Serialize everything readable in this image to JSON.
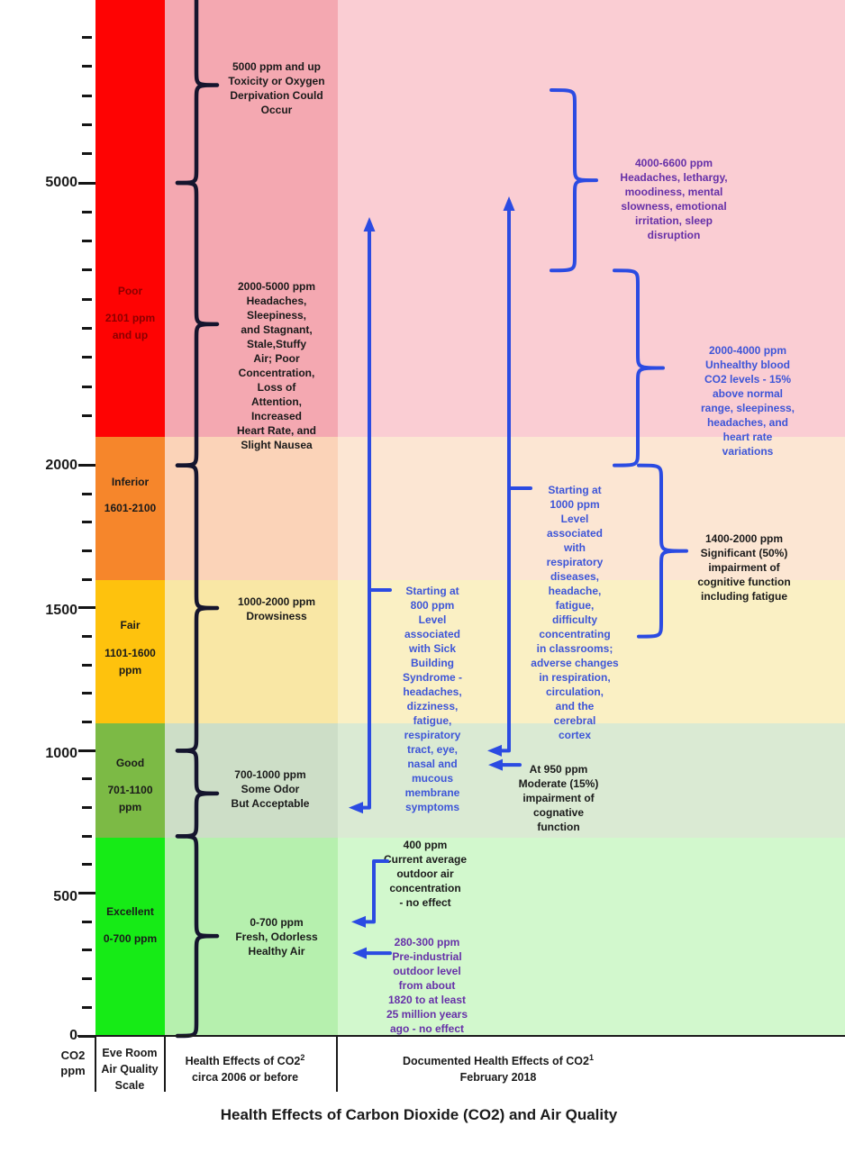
{
  "title": "Health Effects of Carbon Dioxide (CO2) and Air Quality",
  "axis": {
    "unit_label": "CO2\nppm"
  },
  "columns": {
    "scale": {
      "header": "Eve Room\nAir Quality\nScale"
    },
    "effects_2006": {
      "header_main": "Health Effects of CO2",
      "header_sup": "2",
      "header_sub": "circa 2006 or before"
    },
    "effects_2018": {
      "header_main": "Documented Health Effects of CO2",
      "header_sup": "1",
      "header_sub": "February 2018"
    }
  },
  "chart_data": {
    "type": "diagram",
    "title": "Health Effects of Carbon Dioxide (CO2) and Air Quality",
    "y_axis": {
      "label": "CO2 ppm",
      "tick_labels": [
        "0",
        "500",
        "1000",
        "1500",
        "2000",
        "5000"
      ],
      "minor_tick_step_ppm": 100,
      "scale_note": "nonlinear (compressed) above 2100 ppm",
      "range_ppm": [
        0,
        8100
      ]
    },
    "quality_bands": [
      {
        "name": "Poor",
        "range_label": "2101 ppm\nand up",
        "ppm_min": 2100,
        "ppm_max": 8100,
        "color": "#fe0303",
        "label_color": "#8b0000"
      },
      {
        "name": "Inferior",
        "range_label": "1601-2100",
        "ppm_min": 1600,
        "ppm_max": 2100,
        "color": "#f6862b",
        "label_color": "#1a1a1a"
      },
      {
        "name": "Fair",
        "range_label": "1101-1600\nppm",
        "ppm_min": 1100,
        "ppm_max": 1600,
        "color": "#fec20d",
        "label_color": "#1a1a1a"
      },
      {
        "name": "Good",
        "range_label": "701-1100\nppm",
        "ppm_min": 700,
        "ppm_max": 1100,
        "color": "#7cba45",
        "label_color": "#1a1a1a"
      },
      {
        "name": "Excellent",
        "range_label": "0-700 ppm",
        "ppm_min": 0,
        "ppm_max": 700,
        "color": "#16eb16",
        "label_color": "#1a1a1a"
      }
    ],
    "effects_2006": [
      {
        "ppm_min": 5000,
        "ppm_max": 8100,
        "text": "5000 ppm and up\nToxicity or Oxygen\nDerpivation Could\nOccur"
      },
      {
        "ppm_min": 2000,
        "ppm_max": 5000,
        "text": "2000-5000 ppm\nHeadaches,\nSleepiness,\nand Stagnant,\nStale,Stuffy\nAir; Poor\nConcentration,\nLoss of\nAttention,\nIncreased\nHeart Rate, and\nSlight Nausea"
      },
      {
        "ppm_min": 1000,
        "ppm_max": 2000,
        "text": "1000-2000 ppm\nDrowsiness"
      },
      {
        "ppm_min": 700,
        "ppm_max": 1000,
        "text": "700-1000 ppm\nSome Odor\nBut Acceptable"
      },
      {
        "ppm_min": 0,
        "ppm_max": 700,
        "text": "0-700 ppm\nFresh, Odorless\nHealthy Air"
      }
    ],
    "effects_2018_braces": [
      {
        "ppm_min": 4000,
        "ppm_max": 6600,
        "text_color": "#6630a8",
        "text": "4000-6600 ppm\nHeadaches, lethargy,\nmoodiness, mental\nslowness, emotional\nirritation, sleep\ndisruption"
      },
      {
        "ppm_min": 2000,
        "ppm_max": 4000,
        "text_color": "#3d55d8",
        "text": "2000-4000 ppm\nUnhealthy blood\nCO2 levels - 15%\nabove normal\nrange, sleepiness,\nheadaches, and\nheart rate\nvariations"
      },
      {
        "ppm_min": 1400,
        "ppm_max": 2000,
        "text_color": "#1a1a1a",
        "text": "1400-2000 ppm\nSignificant (50%)\nimpairment of\ncognitive function\nincluding fatigue"
      }
    ],
    "effects_2018_arrows": [
      {
        "ppm": 1000,
        "style": "up-range-arrow",
        "text_color": "#3d55d8",
        "text": "Starting at\n1000 ppm\nLevel\nassociated\nwith\nrespiratory\ndiseases,\nheadache,\nfatigue,\ndifficulty\nconcentrating\nin classrooms;\nadverse changes\nin respiration,\ncirculation,\nand the\ncerebral\ncortex"
      },
      {
        "ppm": 800,
        "style": "up-range-arrow",
        "text_color": "#3d55d8",
        "text": "Starting at\n800 ppm\nLevel\nassociated\nwith Sick\nBuilding\nSyndrome -\nheadaches,\ndizziness,\nfatigue,\nrespiratory\ntract, eye,\nnasal and\nmucous\nmembrane\nsymptoms"
      },
      {
        "ppm": 950,
        "style": "level-pointer",
        "text_color": "#1a1a1a",
        "text": "At 950 ppm\nModerate (15%)\nimpairment of\ncognative\nfunction"
      },
      {
        "ppm": 400,
        "style": "level-pointer",
        "text_color": "#1a1a1a",
        "text": "400 ppm\nCurrent average\noutdoor air\nconcentration\n- no effect"
      },
      {
        "ppm": 290,
        "style": "level-pointer",
        "text_color": "#6630a8",
        "text": "280-300 ppm\nPre-industrial\noutdoor level\nfrom about\n1820 to at least\n25 million years\nago - no effect"
      }
    ],
    "accent_colors": {
      "brace_black": "#15152e",
      "brace_blue": "#2b4be2",
      "text_blue": "#3d55d8",
      "text_purple": "#6630a8"
    }
  }
}
